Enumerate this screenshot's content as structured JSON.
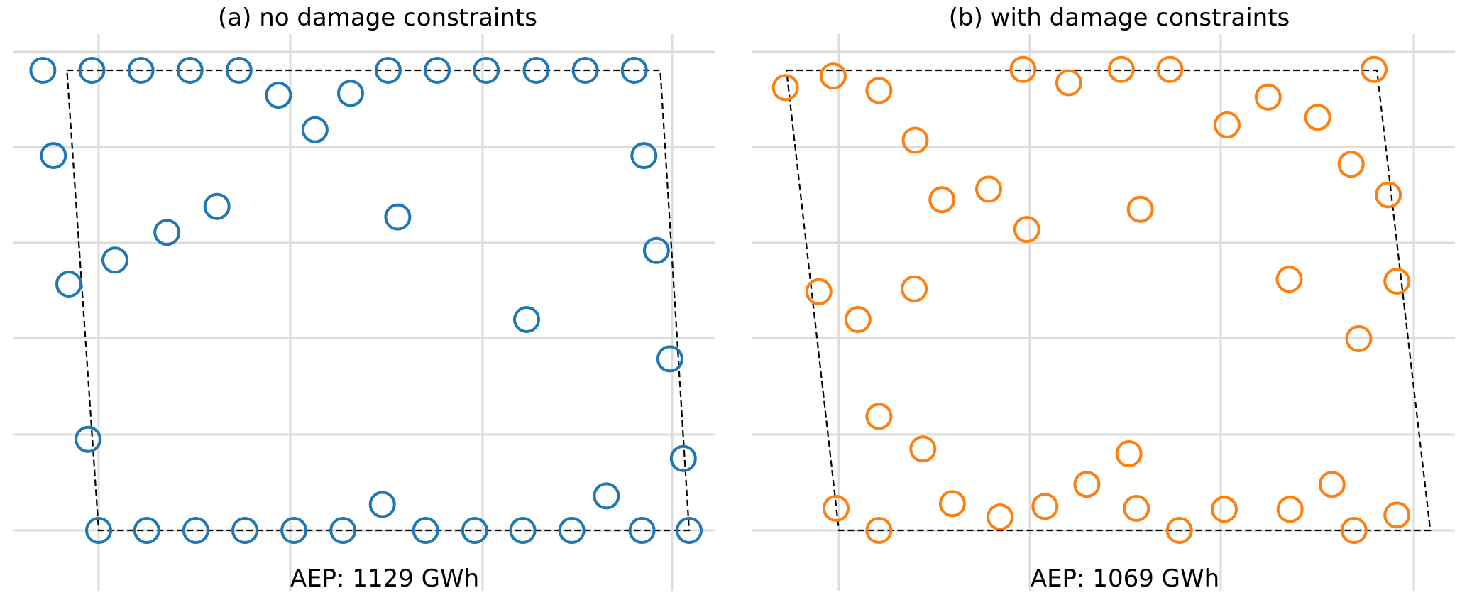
{
  "chart_data": [
    {
      "type": "scatter",
      "title": "(a) no damage constraints",
      "annotation": "AEP: 1129 GWh",
      "color": "#1f77b4",
      "marker": "hollow-circle",
      "grid": true,
      "xlim": [
        -0.5,
        6.9
      ],
      "ylim": [
        -0.65,
        5.1
      ],
      "boundary": [
        [
          -0.33,
          4.8
        ],
        [
          5.84,
          4.8
        ],
        [
          6.14,
          0.0
        ],
        [
          0.0,
          0.0
        ]
      ],
      "points": [
        [
          -0.58,
          4.8
        ],
        [
          -0.07,
          4.8
        ],
        [
          0.44,
          4.8
        ],
        [
          0.95,
          4.8
        ],
        [
          1.46,
          4.8
        ],
        [
          3.01,
          4.8
        ],
        [
          3.52,
          4.8
        ],
        [
          4.03,
          4.8
        ],
        [
          4.55,
          4.8
        ],
        [
          5.06,
          4.8
        ],
        [
          5.57,
          4.8
        ],
        [
          1.87,
          4.54
        ],
        [
          2.62,
          4.56
        ],
        [
          2.25,
          4.18
        ],
        [
          -0.47,
          3.91
        ],
        [
          5.67,
          3.91
        ],
        [
          1.23,
          3.38
        ],
        [
          0.71,
          3.11
        ],
        [
          0.17,
          2.82
        ],
        [
          3.11,
          3.27
        ],
        [
          -0.31,
          2.57
        ],
        [
          5.8,
          2.92
        ],
        [
          4.45,
          2.2
        ],
        [
          5.94,
          1.79
        ],
        [
          -0.11,
          0.95
        ],
        [
          6.08,
          0.75
        ],
        [
          0.0,
          0.0
        ],
        [
          0.5,
          0.0
        ],
        [
          1.01,
          0.0
        ],
        [
          1.52,
          0.0
        ],
        [
          2.03,
          0.0
        ],
        [
          2.54,
          0.0
        ],
        [
          3.4,
          0.0
        ],
        [
          3.91,
          0.0
        ],
        [
          4.41,
          0.0
        ],
        [
          4.92,
          0.0
        ],
        [
          5.65,
          0.0
        ],
        [
          6.14,
          0.0
        ],
        [
          2.95,
          0.27
        ],
        [
          5.28,
          0.36
        ]
      ]
    },
    {
      "type": "scatter",
      "title": "(b) with damage constraints",
      "annotation": "AEP: 1069 GWh",
      "color": "#ff7f0e",
      "marker": "hollow-circle",
      "grid": true,
      "xlim": [
        -0.9,
        6.2
      ],
      "ylim": [
        -0.65,
        5.1
      ],
      "boundary": [
        [
          -0.55,
          4.8
        ],
        [
          5.64,
          4.8
        ],
        [
          6.2,
          0.0
        ],
        [
          0.0,
          0.0
        ]
      ],
      "points": [
        [
          -0.56,
          4.62
        ],
        [
          -0.06,
          4.74
        ],
        [
          0.42,
          4.59
        ],
        [
          1.93,
          4.81
        ],
        [
          2.41,
          4.67
        ],
        [
          2.96,
          4.81
        ],
        [
          3.47,
          4.81
        ],
        [
          5.61,
          4.81
        ],
        [
          4.07,
          4.23
        ],
        [
          4.5,
          4.52
        ],
        [
          5.02,
          4.31
        ],
        [
          0.8,
          4.07
        ],
        [
          5.37,
          3.82
        ],
        [
          5.76,
          3.5
        ],
        [
          1.08,
          3.45
        ],
        [
          1.57,
          3.56
        ],
        [
          1.97,
          3.14
        ],
        [
          3.16,
          3.35
        ],
        [
          -0.21,
          2.49
        ],
        [
          0.79,
          2.52
        ],
        [
          0.2,
          2.2
        ],
        [
          4.72,
          2.62
        ],
        [
          5.85,
          2.6
        ],
        [
          5.45,
          2.0
        ],
        [
          0.42,
          1.19
        ],
        [
          0.88,
          0.85
        ],
        [
          3.04,
          0.8
        ],
        [
          2.6,
          0.48
        ],
        [
          5.17,
          0.48
        ],
        [
          -0.03,
          0.23
        ],
        [
          1.19,
          0.28
        ],
        [
          1.69,
          0.14
        ],
        [
          2.16,
          0.25
        ],
        [
          3.12,
          0.23
        ],
        [
          0.42,
          0.0
        ],
        [
          3.57,
          0.0
        ],
        [
          4.04,
          0.22
        ],
        [
          4.73,
          0.22
        ],
        [
          5.4,
          0.0
        ],
        [
          5.85,
          0.16
        ]
      ]
    }
  ]
}
